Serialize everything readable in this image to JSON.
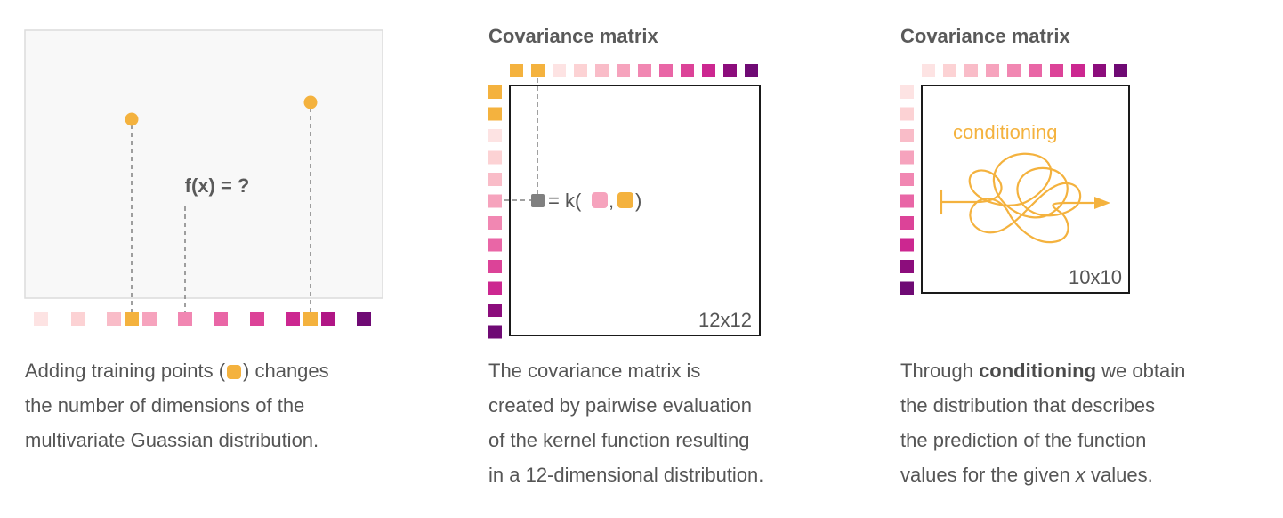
{
  "colors": {
    "training": "#f4b23e",
    "gradient": [
      "#fde3e3",
      "#fcd2d4",
      "#f9bcc8",
      "#f6a3bd",
      "#f187b2",
      "#e966a6",
      "#dc4398",
      "#cc2790",
      "#b01685",
      "#8c0d7c",
      "#6f0a74"
    ],
    "frame": "#1a1a1a",
    "marker": "#808080"
  },
  "panel1": {
    "question_label": "f(x) = ?",
    "caption": {
      "line1_before": "Adding training points (",
      "line1_after": ") changes",
      "line2": "the number of dimensions of the",
      "line3": "multivariate Guassian distribution."
    }
  },
  "panel2": {
    "heading": "Covariance matrix",
    "size_label": "12x12",
    "kernel_prefix": "= k(",
    "kernel_sep": ",",
    "kernel_suffix": ")",
    "caption": {
      "line1": "The covariance matrix is",
      "line2": "created by pairwise evaluation",
      "line3": "of the kernel function resulting",
      "line4": "in a 12-dimensional distribution."
    }
  },
  "panel3": {
    "heading": "Covariance matrix",
    "size_label": "10x10",
    "conditioning_label": "conditioning",
    "caption": {
      "line1_before": "Through ",
      "line1_bold": "conditioning",
      "line1_after": " we obtain",
      "line2": "the distribution that describes",
      "line3": "the prediction of the function",
      "line4_before": "values for the given ",
      "line4_italic": "x",
      "line4_after": " values."
    }
  }
}
